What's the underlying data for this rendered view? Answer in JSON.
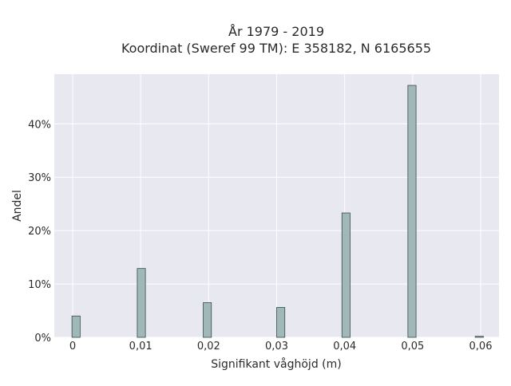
{
  "chart_data": {
    "type": "bar",
    "title_line1": "År 1979 - 2019",
    "title_line2": "Koordinat (Sweref 99 TM): E 358182, N 6165655",
    "xlabel": "Signifikant våghöjd (m)",
    "ylabel": "Andel",
    "x_ticks": [
      {
        "value": 0,
        "label": "0"
      },
      {
        "value": 0.01,
        "label": "0,01"
      },
      {
        "value": 0.02,
        "label": "0,02"
      },
      {
        "value": 0.03,
        "label": "0,03"
      },
      {
        "value": 0.04,
        "label": "0,04"
      },
      {
        "value": 0.05,
        "label": "0,05"
      },
      {
        "value": 0.06,
        "label": "0,06"
      }
    ],
    "y_ticks": [
      {
        "value": 0,
        "label": "0%"
      },
      {
        "value": 10,
        "label": "10%"
      },
      {
        "value": 20,
        "label": "20%"
      },
      {
        "value": 30,
        "label": "30%"
      },
      {
        "value": 40,
        "label": "40%"
      }
    ],
    "xlim": [
      -0.0027,
      0.0627
    ],
    "ylim": [
      0,
      49.3
    ],
    "bar_width": 0.0012,
    "bars": [
      {
        "x": 0.0005,
        "value": 4.0
      },
      {
        "x": 0.0101,
        "value": 12.9
      },
      {
        "x": 0.0198,
        "value": 6.5
      },
      {
        "x": 0.0306,
        "value": 5.6
      },
      {
        "x": 0.0402,
        "value": 23.3
      },
      {
        "x": 0.0499,
        "value": 47.2
      },
      {
        "x": 0.0598,
        "value": 0.2
      }
    ],
    "colors": {
      "bar_fill": "#a0b8b8",
      "bar_stroke": "#3a4a4a",
      "plot_bg": "#e8e8f0",
      "grid": "#ffffff",
      "text": "#2a2a2a"
    },
    "grid": true
  }
}
